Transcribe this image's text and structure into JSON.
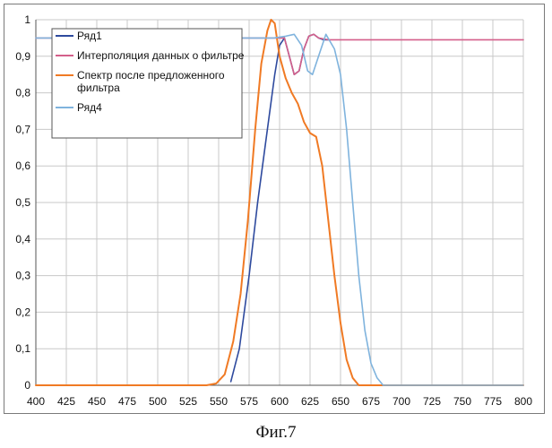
{
  "figure_caption": "Фиг.7",
  "chart_data": {
    "type": "line",
    "title": "",
    "xlabel": "",
    "ylabel": "",
    "xlim": [
      400,
      800
    ],
    "ylim": [
      0,
      1
    ],
    "x_ticks": [
      "400",
      "425",
      "450",
      "475",
      "500",
      "525",
      "550",
      "575",
      "600",
      "625",
      "650",
      "675",
      "700",
      "725",
      "750",
      "775",
      "800"
    ],
    "y_ticks": [
      "0",
      "0,1",
      "0,2",
      "0,3",
      "0,4",
      "0,5",
      "0,6",
      "0,7",
      "0,8",
      "0,9",
      "1"
    ],
    "grid": true,
    "legend_position": "top-left",
    "series": [
      {
        "name": "Ряд1",
        "color": "#2e4a9e",
        "points": [
          [
            560,
            0.01
          ],
          [
            567,
            0.1
          ],
          [
            575,
            0.3
          ],
          [
            582,
            0.5
          ],
          [
            590,
            0.7
          ],
          [
            596,
            0.85
          ],
          [
            600,
            0.93
          ],
          [
            604,
            0.95
          ],
          [
            608,
            0.9
          ],
          [
            612,
            0.85
          ],
          [
            616,
            0.86
          ],
          [
            620,
            0.92
          ],
          [
            624,
            0.955
          ],
          [
            628,
            0.96
          ],
          [
            632,
            0.95
          ],
          [
            636,
            0.945
          ],
          [
            640,
            0.945
          ]
        ]
      },
      {
        "name": "Интерполяция данных о фильтре",
        "color": "#d45f8a",
        "points": [
          [
            400,
            0.95
          ],
          [
            560,
            0.95
          ],
          [
            570,
            0.95
          ],
          [
            580,
            0.95
          ],
          [
            590,
            0.95
          ],
          [
            600,
            0.95
          ],
          [
            604,
            0.95
          ],
          [
            608,
            0.9
          ],
          [
            612,
            0.85
          ],
          [
            616,
            0.86
          ],
          [
            620,
            0.92
          ],
          [
            624,
            0.955
          ],
          [
            628,
            0.96
          ],
          [
            632,
            0.95
          ],
          [
            640,
            0.945
          ],
          [
            700,
            0.945
          ],
          [
            800,
            0.945
          ]
        ]
      },
      {
        "name": "Спектр после предложенного фильтра",
        "color": "#f07a24",
        "points": [
          [
            400,
            0.0
          ],
          [
            540,
            0.0
          ],
          [
            548,
            0.005
          ],
          [
            555,
            0.03
          ],
          [
            562,
            0.12
          ],
          [
            568,
            0.25
          ],
          [
            574,
            0.45
          ],
          [
            580,
            0.7
          ],
          [
            585,
            0.88
          ],
          [
            590,
            0.97
          ],
          [
            593,
            1.0
          ],
          [
            596,
            0.99
          ],
          [
            600,
            0.9
          ],
          [
            605,
            0.84
          ],
          [
            610,
            0.8
          ],
          [
            615,
            0.77
          ],
          [
            620,
            0.72
          ],
          [
            625,
            0.69
          ],
          [
            630,
            0.68
          ],
          [
            635,
            0.6
          ],
          [
            640,
            0.45
          ],
          [
            645,
            0.3
          ],
          [
            650,
            0.17
          ],
          [
            655,
            0.07
          ],
          [
            660,
            0.02
          ],
          [
            665,
            0.0
          ],
          [
            700,
            0.0
          ],
          [
            800,
            0.0
          ]
        ]
      },
      {
        "name": "Ряд4",
        "color": "#7fb3dd",
        "points": [
          [
            400,
            0.95
          ],
          [
            550,
            0.95
          ],
          [
            560,
            0.95
          ],
          [
            580,
            0.95
          ],
          [
            595,
            0.95
          ],
          [
            605,
            0.955
          ],
          [
            612,
            0.96
          ],
          [
            618,
            0.93
          ],
          [
            623,
            0.86
          ],
          [
            627,
            0.85
          ],
          [
            632,
            0.9
          ],
          [
            638,
            0.96
          ],
          [
            645,
            0.92
          ],
          [
            650,
            0.85
          ],
          [
            655,
            0.7
          ],
          [
            660,
            0.5
          ],
          [
            665,
            0.3
          ],
          [
            670,
            0.15
          ],
          [
            675,
            0.06
          ],
          [
            680,
            0.02
          ],
          [
            685,
            0.0
          ],
          [
            800,
            0.0
          ]
        ]
      }
    ]
  }
}
